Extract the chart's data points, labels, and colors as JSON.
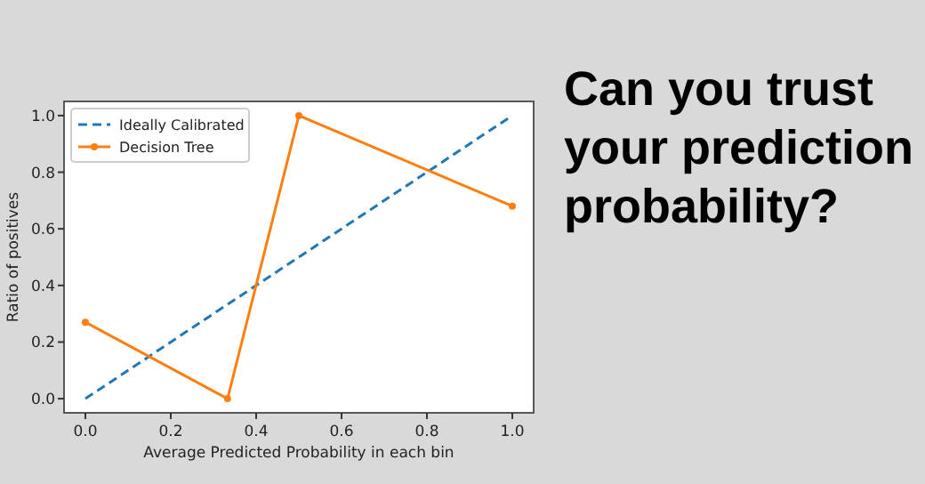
{
  "chart_data": {
    "type": "line",
    "title": "Can you trust your prediction probability?",
    "xlabel": "Average Predicted Probability in each bin",
    "ylabel": "Ratio of positives",
    "xlim": [
      -0.05,
      1.05
    ],
    "ylim": [
      -0.05,
      1.05
    ],
    "xticks": [
      {
        "value": 0,
        "label": "0.0"
      },
      {
        "value": 0.2,
        "label": "0.2"
      },
      {
        "value": 0.4,
        "label": "0.4"
      },
      {
        "value": 0.6,
        "label": "0.6"
      },
      {
        "value": 0.8,
        "label": "0.8"
      },
      {
        "value": 1,
        "label": "1.0"
      }
    ],
    "yticks": [
      {
        "value": 0,
        "label": "0.0"
      },
      {
        "value": 0.2,
        "label": "0.2"
      },
      {
        "value": 0.4,
        "label": "0.4"
      },
      {
        "value": 0.6,
        "label": "0.6"
      },
      {
        "value": 0.8,
        "label": "0.8"
      },
      {
        "value": 1,
        "label": "1.0"
      }
    ],
    "grid": false,
    "legend": "top left",
    "series": [
      {
        "name": "Ideally Calibrated",
        "color": "#1f77b4",
        "x": [
          0,
          1
        ],
        "values": [
          0,
          1
        ],
        "line_style": "dashed",
        "marker": "none"
      },
      {
        "name": "Decision Tree",
        "color": "#ff7f0e",
        "x": [
          0,
          0.333,
          0.5,
          1
        ],
        "values": [
          0.27,
          0,
          1,
          0.68
        ],
        "line_style": "solid",
        "marker": "circle"
      }
    ]
  }
}
